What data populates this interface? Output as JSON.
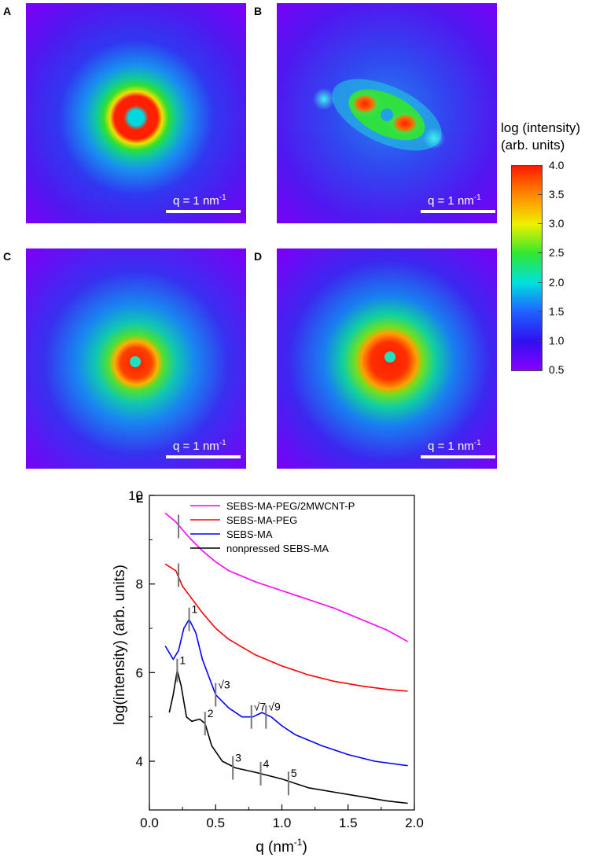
{
  "panels": [
    {
      "label": "A",
      "scale": "q = 1 nm",
      "sup": "-1"
    },
    {
      "label": "B",
      "scale": "q = 1 nm",
      "sup": "-1"
    },
    {
      "label": "C",
      "scale": "q = 1 nm",
      "sup": "-1"
    },
    {
      "label": "D",
      "scale": "q = 1 nm",
      "sup": "-1"
    }
  ],
  "colorbar": {
    "title_line1": "log (intensity)",
    "title_line2": "(arb. units)",
    "ticks": [
      "4.0",
      "3.5",
      "3.0",
      "2.5",
      "2.0",
      "1.5",
      "1.0",
      "0.5"
    ],
    "range": [
      0.5,
      4.0
    ],
    "colors": [
      "#ff1a00",
      "#ff8a00",
      "#f0f000",
      "#30e830",
      "#00e0e0",
      "#2060ff",
      "#3010f0",
      "#8a00ff"
    ]
  },
  "chart_data": {
    "panel_label": "E",
    "type": "line",
    "xlabel": "q (nm",
    "xlabel_sup": "-1",
    "xlabel_end": ")",
    "ylabel": "log(intensity) (arb. units)",
    "xlim": [
      0.0,
      2.0
    ],
    "ylim": [
      2.9,
      10.0
    ],
    "xticks": [
      "0.0",
      "0.5",
      "1.0",
      "1.5",
      "2.0"
    ],
    "yticks": [
      "4",
      "6",
      "8",
      "10"
    ],
    "legend_position": "top-right",
    "series": [
      {
        "name": "SEBS-MA-PEG/2MWCNT-P",
        "color": "#ff00ff",
        "points": [
          [
            0.12,
            9.6
          ],
          [
            0.2,
            9.4
          ],
          [
            0.3,
            9.05
          ],
          [
            0.4,
            8.75
          ],
          [
            0.5,
            8.5
          ],
          [
            0.6,
            8.3
          ],
          [
            0.8,
            8.05
          ],
          [
            1.0,
            7.85
          ],
          [
            1.2,
            7.65
          ],
          [
            1.4,
            7.45
          ],
          [
            1.6,
            7.2
          ],
          [
            1.8,
            6.95
          ],
          [
            1.95,
            6.7
          ]
        ]
      },
      {
        "name": "SEBS-MA-PEG",
        "color": "#ff0000",
        "points": [
          [
            0.12,
            8.45
          ],
          [
            0.2,
            8.3
          ],
          [
            0.25,
            7.95
          ],
          [
            0.3,
            7.75
          ],
          [
            0.4,
            7.35
          ],
          [
            0.5,
            7.0
          ],
          [
            0.6,
            6.75
          ],
          [
            0.8,
            6.4
          ],
          [
            1.0,
            6.15
          ],
          [
            1.2,
            5.95
          ],
          [
            1.4,
            5.8
          ],
          [
            1.6,
            5.7
          ],
          [
            1.8,
            5.62
          ],
          [
            1.95,
            5.58
          ]
        ]
      },
      {
        "name": "SEBS-MA",
        "color": "#0000ff",
        "points": [
          [
            0.12,
            6.6
          ],
          [
            0.18,
            6.3
          ],
          [
            0.22,
            6.5
          ],
          [
            0.26,
            7.0
          ],
          [
            0.3,
            7.2
          ],
          [
            0.35,
            6.9
          ],
          [
            0.4,
            6.3
          ],
          [
            0.5,
            5.5
          ],
          [
            0.6,
            5.2
          ],
          [
            0.7,
            5.0
          ],
          [
            0.78,
            5.0
          ],
          [
            0.85,
            5.1
          ],
          [
            0.92,
            5.0
          ],
          [
            1.0,
            4.8
          ],
          [
            1.1,
            4.6
          ],
          [
            1.3,
            4.35
          ],
          [
            1.5,
            4.15
          ],
          [
            1.7,
            4.0
          ],
          [
            1.95,
            3.9
          ]
        ]
      },
      {
        "name": "nonpressed SEBS-MA",
        "color": "#000000",
        "points": [
          [
            0.15,
            5.1
          ],
          [
            0.18,
            5.5
          ],
          [
            0.21,
            6.05
          ],
          [
            0.24,
            5.7
          ],
          [
            0.28,
            5.0
          ],
          [
            0.32,
            4.9
          ],
          [
            0.38,
            4.95
          ],
          [
            0.42,
            4.85
          ],
          [
            0.47,
            4.35
          ],
          [
            0.55,
            4.0
          ],
          [
            0.65,
            3.85
          ],
          [
            0.8,
            3.75
          ],
          [
            1.0,
            3.6
          ],
          [
            1.2,
            3.4
          ],
          [
            1.4,
            3.3
          ],
          [
            1.6,
            3.2
          ],
          [
            1.8,
            3.1
          ],
          [
            1.95,
            3.05
          ]
        ]
      }
    ],
    "markers": [
      {
        "x": 0.22,
        "y": 9.3,
        "label": ""
      },
      {
        "x": 0.22,
        "y": 8.2,
        "label": ""
      },
      {
        "x": 0.3,
        "y": 7.2,
        "label": "1"
      },
      {
        "x": 0.5,
        "y": 5.5,
        "label": "√3"
      },
      {
        "x": 0.77,
        "y": 5.0,
        "label": "√7"
      },
      {
        "x": 0.88,
        "y": 5.0,
        "label": "√9"
      },
      {
        "x": 0.21,
        "y": 6.05,
        "label": "1"
      },
      {
        "x": 0.42,
        "y": 4.85,
        "label": "2"
      },
      {
        "x": 0.63,
        "y": 3.85,
        "label": "3"
      },
      {
        "x": 0.84,
        "y": 3.72,
        "label": "4"
      },
      {
        "x": 1.05,
        "y": 3.5,
        "label": "5"
      }
    ]
  }
}
